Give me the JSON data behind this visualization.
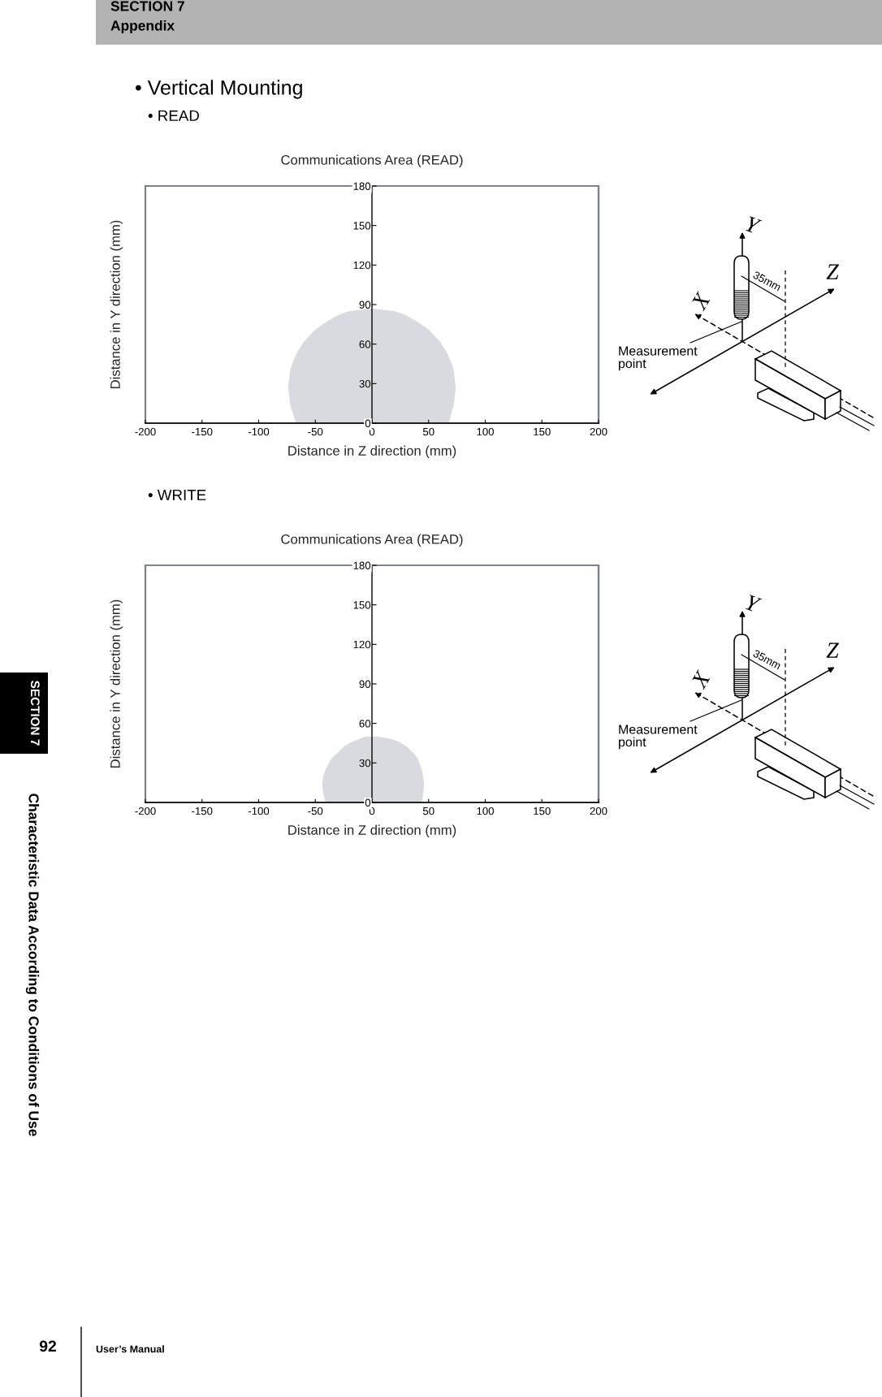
{
  "chart_data": [
    {
      "type": "area",
      "title": "Communications Area (READ)",
      "xlabel": "Distance in Z direction (mm)",
      "ylabel": "Distance in Y direction (mm)",
      "xlim": [
        -200,
        200
      ],
      "ylim": [
        0,
        180
      ],
      "xticks": [
        -200,
        -150,
        -100,
        -50,
        0,
        50,
        100,
        150,
        200
      ],
      "yticks": [
        0,
        30,
        60,
        90,
        120,
        150,
        180
      ],
      "series": [
        {
          "color": "#d9dae0",
          "x": [
            -67,
            -70,
            -72,
            -74,
            -72,
            -70,
            -66,
            -60,
            -50,
            -40,
            -30,
            -20,
            -10,
            0,
            10,
            20,
            30,
            40,
            50,
            60,
            66,
            70,
            72,
            74,
            72,
            70,
            68
          ],
          "values": [
            0,
            8,
            13,
            27,
            41,
            46,
            54,
            62,
            71,
            77,
            82,
            85,
            86,
            87,
            86,
            85,
            82,
            77,
            71,
            62,
            54,
            46,
            41,
            27,
            13,
            8,
            0
          ]
        }
      ],
      "annotations": [
        "SECTION 7",
        "Appendix",
        "• Vertical Mounting",
        "• READ",
        "Measurement\npoint",
        "X",
        "Y",
        "Z",
        "35mm",
        "SECTION 7",
        "Characteristic Data According to Conditions of Use",
        "92",
        "User’s Manual"
      ]
    },
    {
      "type": "area",
      "title": "Communications Area (READ)",
      "xlabel": "Distance in Z direction (mm)",
      "ylabel": "Distance in Y direction (mm)",
      "xlim": [
        -200,
        200
      ],
      "ylim": [
        0,
        180
      ],
      "xticks": [
        -200,
        -150,
        -100,
        -50,
        0,
        50,
        100,
        150,
        200
      ],
      "yticks": [
        0,
        30,
        60,
        90,
        120,
        150,
        180
      ],
      "series": [
        {
          "color": "#d9dae0",
          "x": [
            -41,
            -43,
            -44,
            -43,
            -41,
            -38,
            -35,
            -30,
            -24,
            -18,
            -12,
            -6,
            0,
            6,
            12,
            18,
            24,
            30,
            36,
            40,
            44,
            45,
            46,
            45,
            44
          ],
          "values": [
            0,
            7,
            14,
            20,
            25,
            30,
            34,
            38,
            43,
            46,
            48,
            50,
            50,
            50,
            49,
            48,
            46,
            43,
            38,
            34,
            25,
            21,
            14,
            5,
            0
          ]
        }
      ],
      "annotations": [
        "• WRITE",
        "Measurement\npoint",
        "X",
        "Y",
        "Z",
        "35mm"
      ]
    }
  ]
}
